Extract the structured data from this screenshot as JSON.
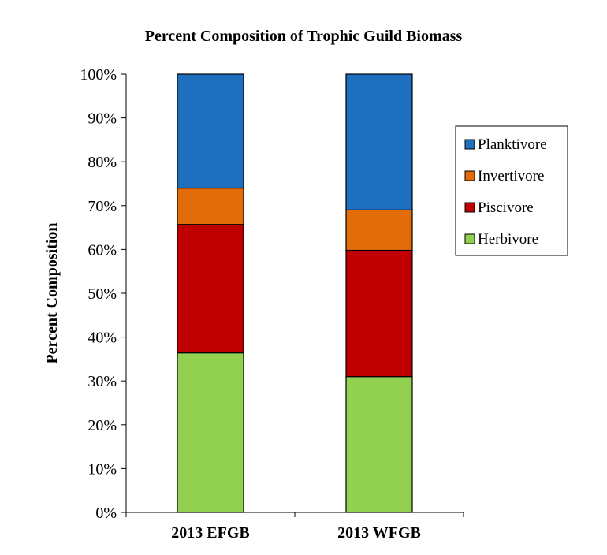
{
  "chart_data": {
    "type": "bar",
    "stacked": true,
    "title": "Percent Composition of Trophic Guild Biomass",
    "xlabel": "",
    "ylabel": "Percent Composition",
    "categories": [
      "2013 EFGB",
      "2013 WFGB"
    ],
    "ylim": [
      0,
      100
    ],
    "yticks": [
      "0%",
      "10%",
      "20%",
      "30%",
      "40%",
      "50%",
      "60%",
      "70%",
      "80%",
      "90%",
      "100%"
    ],
    "series": [
      {
        "name": "Herbivore",
        "color": "#92d050",
        "values": [
          36.4,
          31.0
        ]
      },
      {
        "name": "Piscivore",
        "color": "#c00000",
        "values": [
          29.3,
          28.8
        ]
      },
      {
        "name": "Invertivore",
        "color": "#e36c0a",
        "values": [
          8.3,
          9.2
        ]
      },
      {
        "name": "Planktivore",
        "color": "#1f6fbf",
        "values": [
          26.0,
          31.0
        ]
      }
    ],
    "legend_position": "right",
    "legend_order": [
      "Planktivore",
      "Invertivore",
      "Piscivore",
      "Herbivore"
    ],
    "grid": false
  }
}
